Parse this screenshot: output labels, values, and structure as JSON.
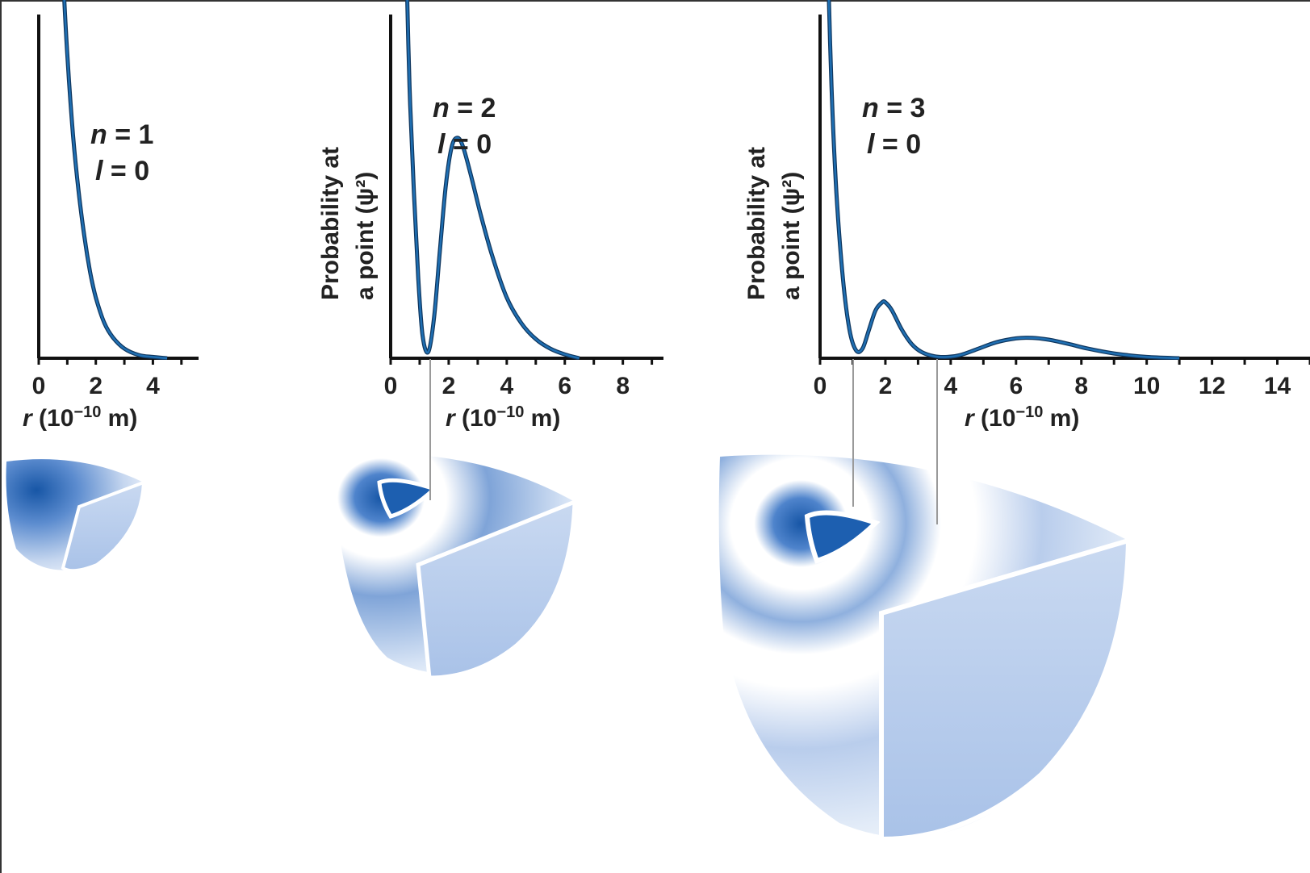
{
  "chart_data": [
    {
      "type": "line",
      "panel": "n1",
      "state": {
        "n_label": "n = 1",
        "l_label": "l = 0"
      },
      "xlabel": {
        "symbol": "r",
        "unit_base": "(10",
        "unit_exp": "−10",
        "unit_end": " m)"
      },
      "ylabel": "",
      "xlim": [
        0,
        5.6
      ],
      "ylim": [
        0,
        1.0
      ],
      "xticks": [
        "0",
        "2",
        "4"
      ],
      "xtick_values": [
        0,
        2,
        4
      ],
      "grid": false,
      "series": [
        {
          "color": "#1f6fb2",
          "x": [
            0.85,
            1.0,
            1.2,
            1.4,
            1.6,
            1.8,
            2.0,
            2.3,
            2.6,
            3.0,
            3.5,
            4.0,
            4.5
          ],
          "y": [
            1.2,
            0.95,
            0.7,
            0.52,
            0.38,
            0.27,
            0.19,
            0.11,
            0.065,
            0.03,
            0.01,
            0.004,
            0.0
          ]
        }
      ]
    },
    {
      "type": "line",
      "panel": "n2",
      "state": {
        "n_label": "n = 2",
        "l_label": "l = 0"
      },
      "xlabel": {
        "symbol": "r",
        "unit_base": "(10",
        "unit_exp": "−10",
        "unit_end": " m)"
      },
      "ylabel": [
        "Probability at",
        "a point (ψ²)"
      ],
      "xlim": [
        0,
        9.4
      ],
      "ylim": [
        0,
        1.0
      ],
      "xticks": [
        "0",
        "2",
        "4",
        "6",
        "8"
      ],
      "xtick_values": [
        0,
        2,
        4,
        6,
        8
      ],
      "grid": false,
      "series": [
        {
          "color": "#1f6fb2",
          "x": [
            0.55,
            0.65,
            0.8,
            0.95,
            1.1,
            1.3,
            1.5,
            1.7,
            1.9,
            2.1,
            2.3,
            2.5,
            2.8,
            3.1,
            3.5,
            4.0,
            4.5,
            5.0,
            5.5,
            6.0,
            6.5
          ],
          "y": [
            1.2,
            0.85,
            0.52,
            0.25,
            0.07,
            0.02,
            0.13,
            0.34,
            0.54,
            0.66,
            0.69,
            0.66,
            0.56,
            0.45,
            0.32,
            0.19,
            0.11,
            0.06,
            0.03,
            0.012,
            0.0
          ]
        }
      ]
    },
    {
      "type": "line",
      "panel": "n3",
      "state": {
        "n_label": "n = 3",
        "l_label": "l = 0"
      },
      "xlabel": {
        "symbol": "r",
        "unit_base": "(10",
        "unit_exp": "−10",
        "unit_end": " m)"
      },
      "ylabel": [
        "Probability at",
        "a point (ψ²)"
      ],
      "xlim": [
        0,
        15
      ],
      "ylim": [
        0,
        1.0
      ],
      "xticks": [
        "0",
        "2",
        "4",
        "6",
        "8",
        "10",
        "12",
        "14"
      ],
      "xtick_values": [
        0,
        2,
        4,
        6,
        8,
        10,
        12,
        14
      ],
      "grid": false,
      "series": [
        {
          "color": "#1f6fb2",
          "x": [
            0.25,
            0.35,
            0.5,
            0.7,
            0.9,
            1.1,
            1.3,
            1.5,
            1.7,
            1.9,
            2.0,
            2.2,
            2.5,
            2.8,
            3.1,
            3.5,
            3.9,
            4.3,
            4.8,
            5.4,
            6.0,
            6.5,
            7.0,
            7.6,
            8.2,
            9.0,
            10.0,
            11.0
          ],
          "y": [
            1.2,
            0.85,
            0.52,
            0.25,
            0.09,
            0.025,
            0.03,
            0.09,
            0.15,
            0.175,
            0.175,
            0.15,
            0.09,
            0.045,
            0.02,
            0.006,
            0.004,
            0.01,
            0.028,
            0.05,
            0.062,
            0.064,
            0.058,
            0.045,
            0.03,
            0.015,
            0.004,
            0.0
          ]
        }
      ]
    }
  ],
  "colors": {
    "curve": "#1f6fb2",
    "axis": "#111111",
    "cloud_dark": "#1756a6",
    "cloud_mid": "#8fb0de",
    "cloud_light": "#e6eef9"
  }
}
